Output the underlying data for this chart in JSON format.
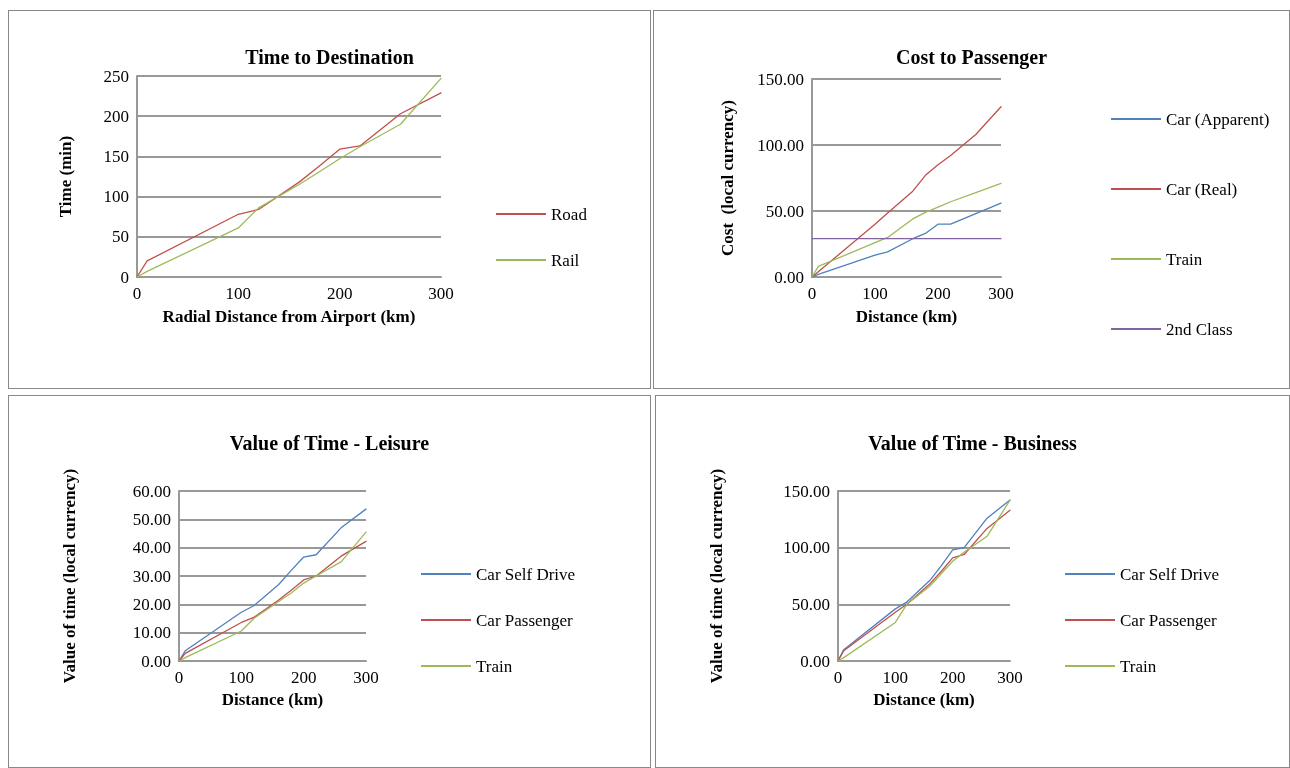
{
  "chart_data": [
    {
      "type": "line",
      "title": "Time to Destination",
      "xlabel": "Radial Distance from Airport (km)",
      "ylabel": "Time (min)",
      "x": [
        0,
        10,
        100,
        120,
        160,
        180,
        200,
        220,
        260,
        300
      ],
      "xlim": [
        0,
        300
      ],
      "xticks": [
        0,
        100,
        200,
        300
      ],
      "ylim": [
        0,
        250
      ],
      "yticks": [
        0,
        50,
        100,
        150,
        200,
        250
      ],
      "grid": "y",
      "legend": "right",
      "marker": "none",
      "line_style": "solid",
      "series": [
        {
          "name": "Road",
          "color": "#c0504d",
          "values": [
            0,
            20,
            78,
            84,
            118,
            138,
            159,
            163,
            203,
            229
          ]
        },
        {
          "name": "Rail",
          "color": "#9bbb59",
          "values": [
            0,
            7,
            61,
            86,
            115,
            131,
            147,
            162,
            190,
            247
          ]
        }
      ]
    },
    {
      "type": "line",
      "title": "Cost to Passenger",
      "xlabel": "Distance (km)",
      "ylabel": "Cost  (local currency)",
      "x": [
        0,
        10,
        100,
        120,
        160,
        180,
        200,
        220,
        260,
        300
      ],
      "xlim": [
        0,
        300
      ],
      "xticks": [
        0,
        100,
        200,
        300
      ],
      "ylim": [
        0,
        150
      ],
      "yticks": [
        {
          "value": 0,
          "label": "0.00"
        },
        {
          "value": 50,
          "label": "50.00"
        },
        {
          "value": 100,
          "label": "100.00"
        },
        {
          "value": 150,
          "label": "150.00"
        }
      ],
      "grid": "y",
      "legend": "right",
      "marker": "none",
      "line_style": "solid",
      "series": [
        {
          "name": "Car (Apparent)",
          "color": "#4f81bd",
          "values": [
            0,
            2,
            16.5,
            19,
            29,
            33,
            40,
            40,
            48,
            56
          ]
        },
        {
          "name": "Car (Real)",
          "color": "#c0504d",
          "values": [
            0,
            4,
            40,
            48.5,
            65,
            77,
            85,
            92,
            108,
            129
          ]
        },
        {
          "name": "Train",
          "color": "#9bbb59",
          "values": [
            0,
            8,
            26,
            30,
            44,
            49,
            53,
            57,
            64,
            71
          ]
        },
        {
          "name": "2nd Class",
          "color": "#8064a2",
          "values": [
            29,
            29,
            29,
            29,
            29,
            29,
            29,
            29,
            29,
            29
          ]
        }
      ]
    },
    {
      "type": "line",
      "title": "Value of Time - Leisure",
      "xlabel": "Distance (km)",
      "ylabel": "Value of time (local currency)",
      "x": [
        0,
        10,
        100,
        120,
        160,
        180,
        200,
        220,
        260,
        300
      ],
      "xlim": [
        0,
        300
      ],
      "xticks": [
        0,
        100,
        200,
        300
      ],
      "ylim": [
        0,
        60
      ],
      "yticks": [
        {
          "value": 0,
          "label": "0.00"
        },
        {
          "value": 10,
          "label": "10.00"
        },
        {
          "value": 20,
          "label": "20.00"
        },
        {
          "value": 30,
          "label": "30.00"
        },
        {
          "value": 40,
          "label": "40.00"
        },
        {
          "value": 50,
          "label": "50.00"
        },
        {
          "value": 60,
          "label": "60.00"
        }
      ],
      "grid": "y",
      "legend": "right",
      "marker": "none",
      "line_style": "solid",
      "series": [
        {
          "name": "Car Self Drive",
          "color": "#4f81bd",
          "values": [
            0,
            3.6,
            17.2,
            19.5,
            27,
            32,
            36.7,
            37.5,
            47,
            53.6
          ]
        },
        {
          "name": "Car Passenger",
          "color": "#c0504d",
          "values": [
            0,
            2.7,
            13.6,
            15.4,
            21.5,
            25,
            28.6,
            30,
            37,
            42.2
          ]
        },
        {
          "name": "Train",
          "color": "#9bbb59",
          "values": [
            0,
            1.2,
            10.6,
            15,
            21,
            24,
            27.5,
            30,
            35,
            45.5
          ]
        }
      ]
    },
    {
      "type": "line",
      "title": "Value of Time - Business",
      "xlabel": "Distance (km)",
      "ylabel": "Value of time (local currency)",
      "x": [
        0,
        10,
        100,
        120,
        160,
        180,
        200,
        220,
        260,
        300
      ],
      "xlim": [
        0,
        300
      ],
      "xticks": [
        0,
        100,
        200,
        300
      ],
      "ylim": [
        0,
        150
      ],
      "yticks": [
        {
          "value": 0,
          "label": "0.00"
        },
        {
          "value": 50,
          "label": "50.00"
        },
        {
          "value": 100,
          "label": "100.00"
        },
        {
          "value": 150,
          "label": "150.00"
        }
      ],
      "grid": "y",
      "legend": "right",
      "marker": "none",
      "line_style": "solid",
      "series": [
        {
          "name": "Car Self Drive",
          "color": "#4f81bd",
          "values": [
            0,
            10,
            46,
            52,
            71,
            84,
            98,
            100,
            126,
            142
          ]
        },
        {
          "name": "Car Passenger",
          "color": "#c0504d",
          "values": [
            0,
            9,
            43,
            50,
            68,
            79,
            91,
            94,
            117,
            133
          ]
        },
        {
          "name": "Train",
          "color": "#9bbb59",
          "values": [
            0,
            3,
            34,
            50,
            66,
            77,
            88,
            96,
            110,
            142
          ]
        }
      ]
    }
  ]
}
